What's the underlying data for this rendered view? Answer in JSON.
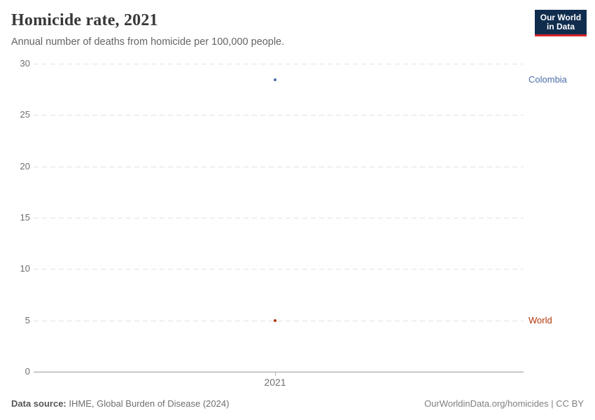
{
  "header": {
    "title": "Homicide rate, 2021",
    "subtitle": "Annual number of deaths from homicide per 100,000 people.",
    "logo": {
      "line1": "Our World",
      "line2": "in Data",
      "bg_color": "#102D4E",
      "accent_color": "#D1232A"
    }
  },
  "chart_data": {
    "type": "scatter",
    "title": "Homicide rate, 2021",
    "x": [
      2021
    ],
    "series": [
      {
        "name": "Colombia",
        "values": [
          28.4
        ],
        "color": "#4C6EA8"
      },
      {
        "name": "World",
        "values": [
          5.0
        ],
        "color": "#B13507"
      }
    ],
    "xlabel": "",
    "ylabel": "",
    "ylim": [
      0,
      30
    ],
    "yticks": [
      0,
      5,
      10,
      15,
      20,
      25,
      30
    ],
    "xticks": [
      "2021"
    ],
    "grid": true,
    "gridline_style": "dashed",
    "legend_position": "right-inline-labels"
  },
  "footer": {
    "source_label": "Data source:",
    "source_text": "IHME, Global Burden of Disease (2024)",
    "credit": "OurWorldinData.org/homicides | CC BY"
  }
}
